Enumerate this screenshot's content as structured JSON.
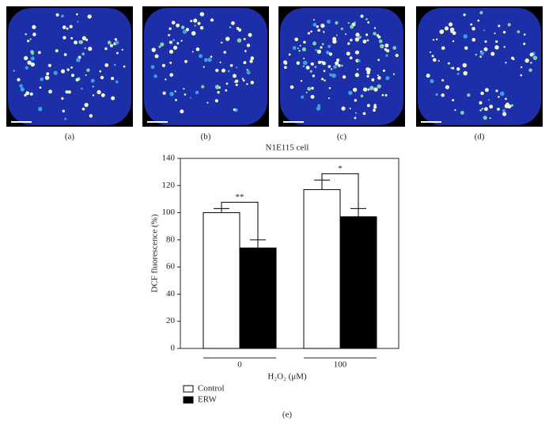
{
  "panels": [
    "(a)",
    "(b)",
    "(c)",
    "(d)"
  ],
  "chart_data": {
    "type": "bar",
    "title": "N1E115 cell",
    "y_label": "DCF fluorescence (%)",
    "x_label": "H₂O₂ (μM)",
    "categories": [
      "0",
      "100"
    ],
    "series": [
      {
        "name": "Control",
        "color": "#ffffff",
        "values": [
          100,
          117
        ],
        "errors": [
          3,
          7
        ]
      },
      {
        "name": "ERW",
        "color": "#000000",
        "values": [
          74,
          97
        ],
        "errors": [
          6,
          6
        ]
      }
    ],
    "significance": [
      "**",
      "*"
    ],
    "ylim": [
      0,
      140
    ],
    "yticks": [
      0,
      20,
      40,
      60,
      80,
      100,
      120,
      140
    ],
    "caption": "(e)"
  }
}
